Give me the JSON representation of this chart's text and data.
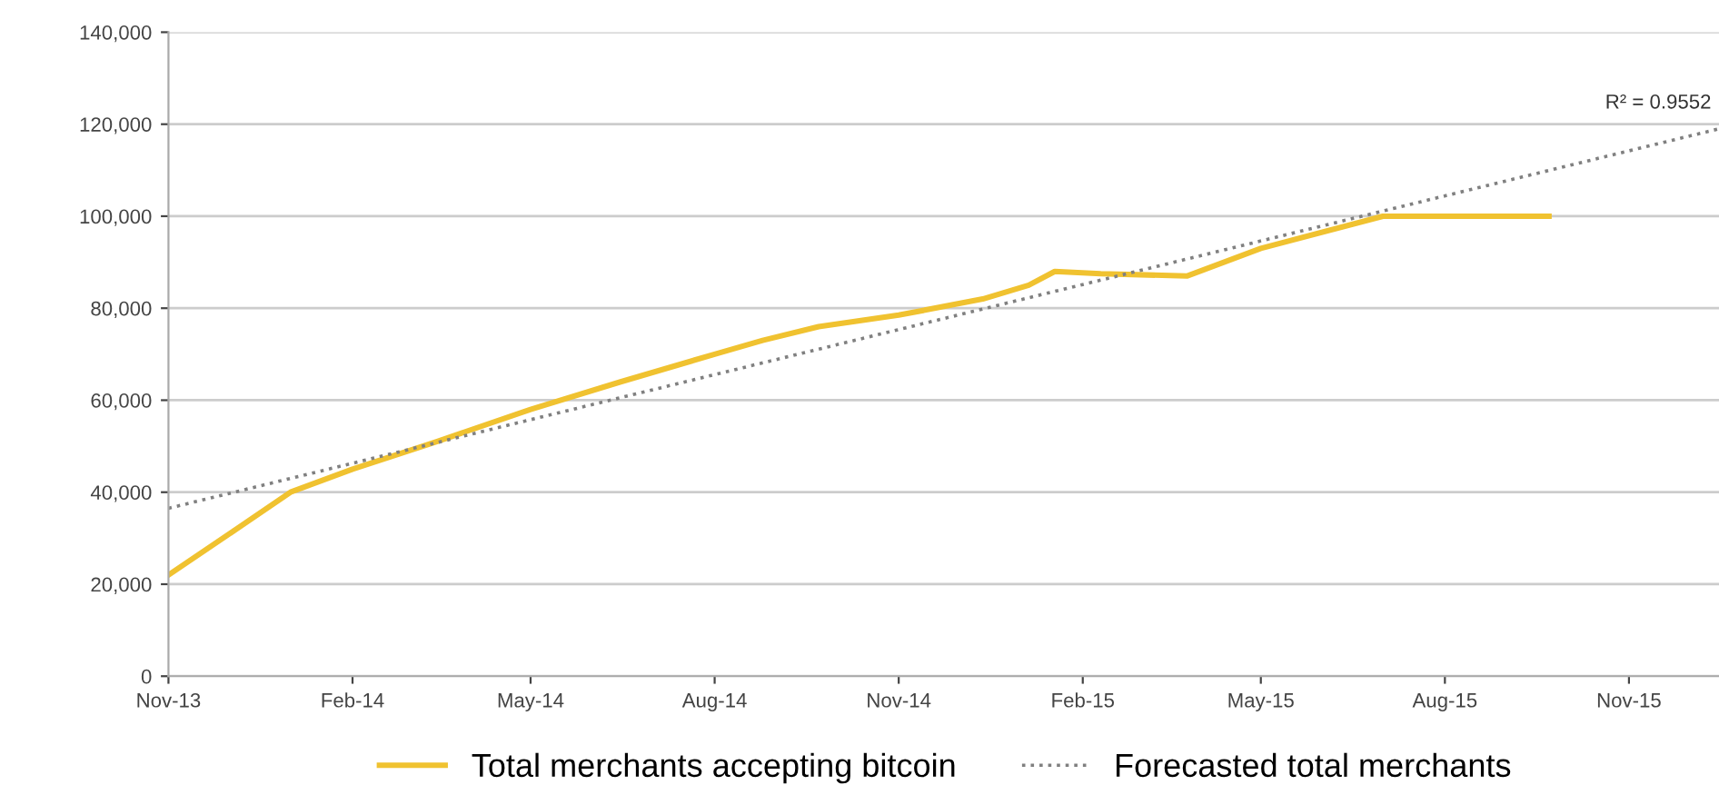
{
  "chart_data": {
    "type": "line",
    "xlim": [
      "2013-11-01",
      "2015-12-16"
    ],
    "xticks": [
      {
        "value": "2013-11-01",
        "label": "Nov-13"
      },
      {
        "value": "2014-02-01",
        "label": "Feb-14"
      },
      {
        "value": "2014-05-01",
        "label": "May-14"
      },
      {
        "value": "2014-08-01",
        "label": "Aug-14"
      },
      {
        "value": "2014-11-01",
        "label": "Nov-14"
      },
      {
        "value": "2015-02-01",
        "label": "Feb-15"
      },
      {
        "value": "2015-05-01",
        "label": "May-15"
      },
      {
        "value": "2015-08-01",
        "label": "Aug-15"
      },
      {
        "value": "2015-11-01",
        "label": "Nov-15"
      }
    ],
    "ylim": [
      0,
      140000
    ],
    "yticks": [
      {
        "value": 0,
        "label": "0"
      },
      {
        "value": 20000,
        "label": "20,000"
      },
      {
        "value": 40000,
        "label": "40,000"
      },
      {
        "value": 60000,
        "label": "60,000"
      },
      {
        "value": 80000,
        "label": "80,000"
      },
      {
        "value": 100000,
        "label": "100,000"
      },
      {
        "value": 120000,
        "label": "120,000"
      },
      {
        "value": 140000,
        "label": "140,000"
      }
    ],
    "grid": "y",
    "legend": "bottom",
    "series": [
      {
        "name": "Total merchants accepting bitcoin",
        "color": "#f0c230",
        "line_style": "solid",
        "x": [
          "2013-11-01",
          "2013-12-05",
          "2014-01-01",
          "2014-02-01",
          "2014-03-15",
          "2014-05-01",
          "2014-06-15",
          "2014-08-01",
          "2014-08-25",
          "2014-09-22",
          "2014-11-01",
          "2014-12-13",
          "2015-01-05",
          "2015-01-18",
          "2015-02-10",
          "2015-03-25",
          "2015-05-01",
          "2015-07-01",
          "2015-09-22"
        ],
        "values": [
          22000,
          32000,
          40000,
          45000,
          51000,
          58000,
          64000,
          70000,
          73000,
          76000,
          78500,
          82000,
          85000,
          88000,
          87500,
          87000,
          93000,
          100000,
          100000
        ]
      },
      {
        "name": "Forecasted total merchants",
        "color": "#808080",
        "line_style": "dotted",
        "x": [
          "2013-11-01",
          "2015-12-16"
        ],
        "values": [
          36500,
          119000
        ]
      }
    ],
    "annotations": [
      "R² = 0.9552"
    ]
  }
}
